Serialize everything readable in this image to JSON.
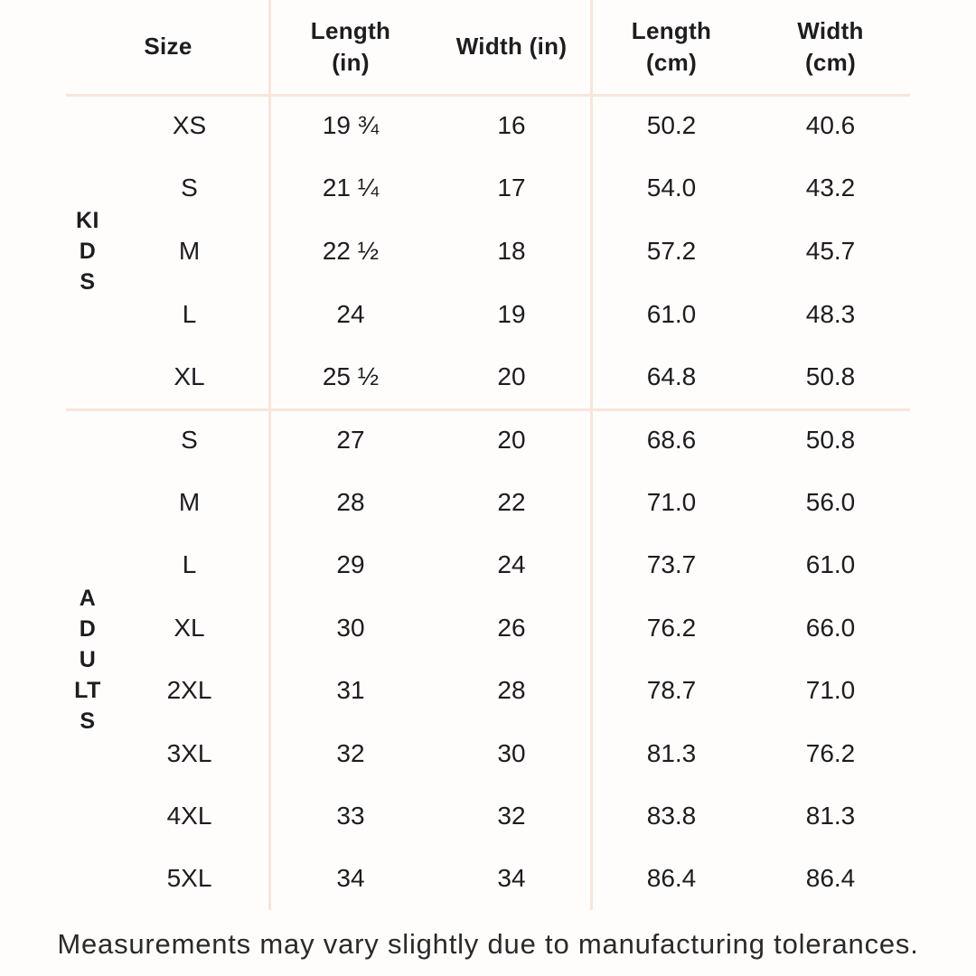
{
  "colors": {
    "background": "#fffdfc",
    "divider": "#f9e5db",
    "text": "#1d1d1f"
  },
  "table": {
    "headers": {
      "size": {
        "line1": "Size",
        "line2": ""
      },
      "length_in": {
        "line1": "Length",
        "line2": "(in)"
      },
      "width_in": {
        "line1": "Width (in)",
        "line2": ""
      },
      "length_cm": {
        "line1": "Length",
        "line2": "(cm)"
      },
      "width_cm": {
        "line1": "Width",
        "line2": "(cm)"
      }
    },
    "sections": [
      {
        "group": "KIDS",
        "rows": [
          {
            "size": "XS",
            "length_in": "19 ¾",
            "width_in": "16",
            "length_cm": "50.2",
            "width_cm": "40.6"
          },
          {
            "size": "S",
            "length_in": "21 ¼",
            "width_in": "17",
            "length_cm": "54.0",
            "width_cm": "43.2"
          },
          {
            "size": "M",
            "length_in": "22 ½",
            "width_in": "18",
            "length_cm": "57.2",
            "width_cm": "45.7"
          },
          {
            "size": "L",
            "length_in": "24",
            "width_in": "19",
            "length_cm": "61.0",
            "width_cm": "48.3"
          },
          {
            "size": "XL",
            "length_in": "25 ½",
            "width_in": "20",
            "length_cm": "64.8",
            "width_cm": "50.8"
          }
        ]
      },
      {
        "group": "ADULTS",
        "rows": [
          {
            "size": "S",
            "length_in": "27",
            "width_in": "20",
            "length_cm": "68.6",
            "width_cm": "50.8"
          },
          {
            "size": "M",
            "length_in": "28",
            "width_in": "22",
            "length_cm": "71.0",
            "width_cm": "56.0"
          },
          {
            "size": "L",
            "length_in": "29",
            "width_in": "24",
            "length_cm": "73.7",
            "width_cm": "61.0"
          },
          {
            "size": "XL",
            "length_in": "30",
            "width_in": "26",
            "length_cm": "76.2",
            "width_cm": "66.0"
          },
          {
            "size": "2XL",
            "length_in": "31",
            "width_in": "28",
            "length_cm": "78.7",
            "width_cm": "71.0"
          },
          {
            "size": "3XL",
            "length_in": "32",
            "width_in": "30",
            "length_cm": "81.3",
            "width_cm": "76.2"
          },
          {
            "size": "4XL",
            "length_in": "33",
            "width_in": "32",
            "length_cm": "83.8",
            "width_cm": "81.3"
          },
          {
            "size": "5XL",
            "length_in": "34",
            "width_in": "34",
            "length_cm": "86.4",
            "width_cm": "86.4"
          }
        ]
      }
    ]
  },
  "footer": {
    "note": "Measurements may vary slightly due to manufacturing tolerances."
  },
  "chart_data": {
    "type": "table",
    "title": "Size chart (garment measurements)",
    "columns": [
      "Size",
      "Length (in)",
      "Width (in)",
      "Length (cm)",
      "Width (cm)"
    ],
    "row_groups": [
      {
        "group": "KIDS",
        "rows": [
          [
            "XS",
            "19 ¾",
            "16",
            "50.2",
            "40.6"
          ],
          [
            "S",
            "21 ¼",
            "17",
            "54.0",
            "43.2"
          ],
          [
            "M",
            "22 ½",
            "18",
            "57.2",
            "45.7"
          ],
          [
            "L",
            "24",
            "19",
            "61.0",
            "48.3"
          ],
          [
            "XL",
            "25 ½",
            "20",
            "64.8",
            "50.8"
          ]
        ]
      },
      {
        "group": "ADULTS",
        "rows": [
          [
            "S",
            "27",
            "20",
            "68.6",
            "50.8"
          ],
          [
            "M",
            "28",
            "22",
            "71.0",
            "56.0"
          ],
          [
            "L",
            "29",
            "24",
            "73.7",
            "61.0"
          ],
          [
            "XL",
            "30",
            "26",
            "76.2",
            "66.0"
          ],
          [
            "2XL",
            "31",
            "28",
            "78.7",
            "71.0"
          ],
          [
            "3XL",
            "32",
            "30",
            "81.3",
            "76.2"
          ],
          [
            "4XL",
            "33",
            "32",
            "83.8",
            "81.3"
          ],
          [
            "5XL",
            "34",
            "34",
            "86.4",
            "86.4"
          ]
        ]
      }
    ],
    "note": "Measurements may vary slightly due to manufacturing tolerances."
  }
}
